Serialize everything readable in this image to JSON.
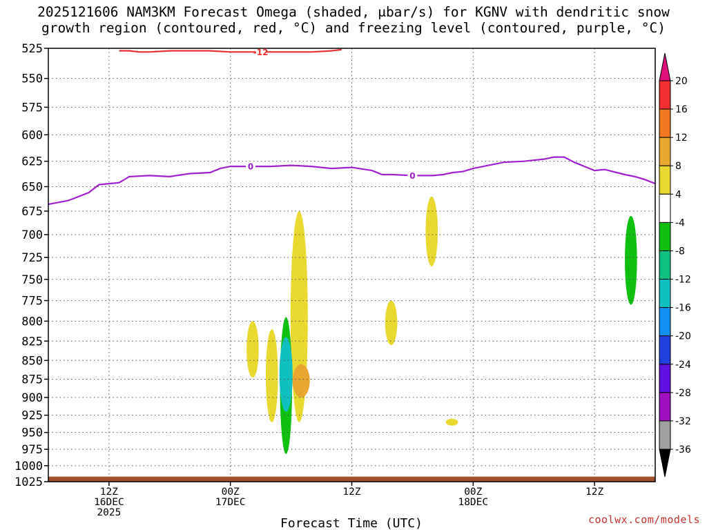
{
  "title_line1": "2025121606 NAM3KM Forecast Omega (shaded, μbar/s) for KGNV with dendritic snow",
  "title_line2": "growth region (contoured, red, °C) and freezing level (contoured, purple, °C)",
  "credit": "coolwx.com/models",
  "chart_data": {
    "type": "contour",
    "title": "2025121606 NAM3KM Forecast Omega (shaded, μbar/s) for KGNV with dendritic snow growth region (contoured, red, °C) and freezing level (contoured, purple, °C)",
    "xlabel": "Forecast Time (UTC)",
    "ylabel": "",
    "x_axis": {
      "range_hours": [
        6,
        66
      ],
      "ticks": [
        {
          "hour": 12,
          "label": [
            "12Z",
            "16DEC",
            "2025"
          ]
        },
        {
          "hour": 24,
          "label": [
            "00Z",
            "17DEC"
          ]
        },
        {
          "hour": 36,
          "label": [
            "12Z"
          ]
        },
        {
          "hour": 48,
          "label": [
            "00Z",
            "18DEC"
          ]
        },
        {
          "hour": 60,
          "label": [
            "12Z"
          ]
        }
      ]
    },
    "y_axis": {
      "range_hPa": [
        1025,
        525
      ],
      "reversed": true,
      "ticks": [
        525,
        550,
        575,
        600,
        625,
        650,
        675,
        700,
        725,
        750,
        775,
        800,
        825,
        850,
        875,
        900,
        925,
        950,
        975,
        1000,
        1025
      ]
    },
    "grid": true,
    "colorbar": {
      "placement": "right",
      "labels": [
        "20",
        "16",
        "12",
        "8",
        "4",
        "-4",
        "-8",
        "-12",
        "-16",
        "-20",
        "-24",
        "-28",
        "-32",
        "-36"
      ],
      "bins": [
        {
          "from": 20,
          "to": 24,
          "color": "#e0107a"
        },
        {
          "from": 16,
          "to": 20,
          "color": "#f03030"
        },
        {
          "from": 12,
          "to": 16,
          "color": "#f07820"
        },
        {
          "from": 8,
          "to": 12,
          "color": "#e8a830"
        },
        {
          "from": 4,
          "to": 8,
          "color": "#e8d830"
        },
        {
          "from": -4,
          "to": 4,
          "color": "#ffffff"
        },
        {
          "from": -8,
          "to": -4,
          "color": "#10c010"
        },
        {
          "from": -12,
          "to": -8,
          "color": "#10c080"
        },
        {
          "from": -16,
          "to": -12,
          "color": "#10c0c0"
        },
        {
          "from": -20,
          "to": -16,
          "color": "#1090f0"
        },
        {
          "from": -24,
          "to": -20,
          "color": "#2040e0"
        },
        {
          "from": -28,
          "to": -24,
          "color": "#6010e0"
        },
        {
          "from": -32,
          "to": -28,
          "color": "#a010c0"
        },
        {
          "from": -36,
          "to": -32,
          "color": "#a0a0a0"
        },
        {
          "from": -40,
          "to": -36,
          "color": "#000000"
        }
      ]
    },
    "freezing_level": {
      "label": "0",
      "color": "#a020d0",
      "points": [
        [
          6,
          668
        ],
        [
          8,
          664
        ],
        [
          10,
          656
        ],
        [
          11,
          648
        ],
        [
          12,
          647
        ],
        [
          13,
          646
        ],
        [
          14,
          640
        ],
        [
          16,
          639
        ],
        [
          18,
          640
        ],
        [
          20,
          637
        ],
        [
          22,
          636
        ],
        [
          23,
          632
        ],
        [
          24,
          630
        ],
        [
          26,
          630
        ],
        [
          28,
          630
        ],
        [
          30,
          629
        ],
        [
          32,
          630
        ],
        [
          34,
          632
        ],
        [
          36,
          631
        ],
        [
          38,
          634
        ],
        [
          39,
          638
        ],
        [
          40,
          638
        ],
        [
          42,
          639
        ],
        [
          44,
          639
        ],
        [
          45,
          638
        ],
        [
          46,
          636
        ],
        [
          47,
          635
        ],
        [
          48,
          632
        ],
        [
          50,
          628
        ],
        [
          51,
          626
        ],
        [
          53,
          625
        ],
        [
          55,
          623
        ],
        [
          56,
          621
        ],
        [
          57,
          621
        ],
        [
          58,
          626
        ],
        [
          59,
          630
        ],
        [
          60,
          634
        ],
        [
          61,
          633
        ],
        [
          63,
          638
        ],
        [
          64,
          640
        ],
        [
          65,
          643
        ],
        [
          66,
          647
        ]
      ],
      "label_hours": [
        26,
        42
      ]
    },
    "dendritic_zone": {
      "label": "-12",
      "color": "#e83030",
      "points": [
        [
          13,
          527
        ],
        [
          14,
          527
        ],
        [
          15,
          528
        ],
        [
          16,
          528
        ],
        [
          18,
          527
        ],
        [
          20,
          527
        ],
        [
          22,
          527
        ],
        [
          24,
          528
        ],
        [
          26,
          528
        ],
        [
          28,
          528
        ],
        [
          30,
          528
        ],
        [
          32,
          528
        ],
        [
          34,
          527
        ],
        [
          35,
          526
        ]
      ],
      "label_hours": [
        27
      ]
    },
    "omega_areas": [
      {
        "value_range": [
          4,
          8
        ],
        "color": "#e8d830",
        "center_hour": 26.2,
        "pressure_range": [
          800,
          873
        ]
      },
      {
        "value_range": [
          4,
          8
        ],
        "color": "#e8d830",
        "center_hour": 28.1,
        "pressure_range": [
          810,
          935
        ]
      },
      {
        "value_range": [
          4,
          8
        ],
        "color": "#e8d830",
        "center_hour": 30.8,
        "pressure_range": [
          675,
          935
        ]
      },
      {
        "value_range": [
          8,
          12
        ],
        "color": "#e8a830",
        "center_hour": 31.0,
        "pressure_range": [
          855,
          900
        ]
      },
      {
        "value_range": [
          -8,
          -4
        ],
        "color": "#10c010",
        "center_hour": 29.5,
        "pressure_range": [
          795,
          982
        ]
      },
      {
        "value_range": [
          -16,
          -12
        ],
        "color": "#10c0c0",
        "center_hour": 29.5,
        "pressure_range": [
          820,
          920
        ]
      },
      {
        "value_range": [
          4,
          8
        ],
        "color": "#e8d830",
        "center_hour": 39.9,
        "pressure_range": [
          775,
          830
        ]
      },
      {
        "value_range": [
          4,
          8
        ],
        "color": "#e8d830",
        "center_hour": 43.9,
        "pressure_range": [
          660,
          735
        ]
      },
      {
        "value_range": [
          4,
          8
        ],
        "color": "#e8d830",
        "center_hour": 45.9,
        "pressure_range": [
          930,
          940
        ]
      },
      {
        "value_range": [
          -8,
          -4
        ],
        "color": "#10c010",
        "center_hour": 63.6,
        "pressure_range": [
          680,
          780
        ]
      }
    ],
    "terrain": {
      "color": "#a0522d",
      "top_hPa": 1017
    }
  }
}
